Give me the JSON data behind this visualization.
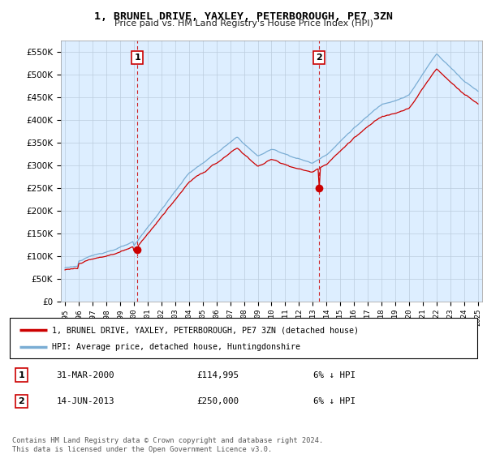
{
  "title": "1, BRUNEL DRIVE, YAXLEY, PETERBOROUGH, PE7 3ZN",
  "subtitle": "Price paid vs. HM Land Registry's House Price Index (HPI)",
  "property_label": "1, BRUNEL DRIVE, YAXLEY, PETERBOROUGH, PE7 3ZN (detached house)",
  "hpi_label": "HPI: Average price, detached house, Huntingdonshire",
  "sale1_date": "31-MAR-2000",
  "sale1_price": "£114,995",
  "sale1_hpi": "6% ↓ HPI",
  "sale2_date": "14-JUN-2013",
  "sale2_price": "£250,000",
  "sale2_hpi": "6% ↓ HPI",
  "footer": "Contains HM Land Registry data © Crown copyright and database right 2024.\nThis data is licensed under the Open Government Licence v3.0.",
  "property_color": "#cc0000",
  "hpi_color": "#7aadd4",
  "chart_bg": "#ddeeff",
  "ylim": [
    0,
    575000
  ],
  "yticks": [
    0,
    50000,
    100000,
    150000,
    200000,
    250000,
    300000,
    350000,
    400000,
    450000,
    500000,
    550000
  ],
  "x_start_year": 1995,
  "x_end_year": 2025,
  "sale1_x": 2000.25,
  "sale2_x": 2013.45,
  "background_color": "#ffffff",
  "grid_color": "#bbccdd"
}
